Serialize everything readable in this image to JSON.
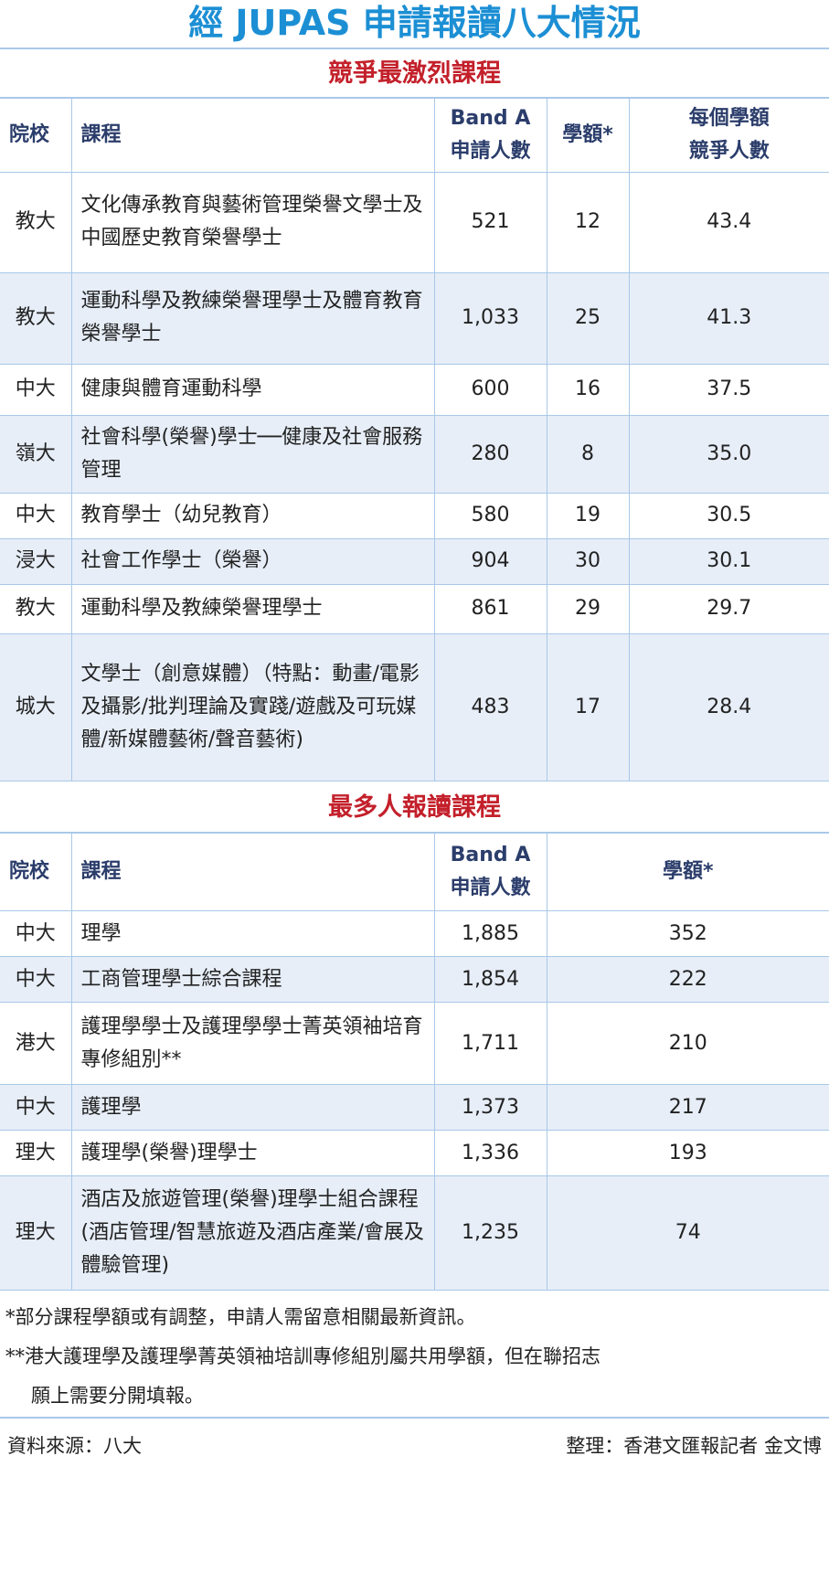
{
  "title": "經 JUPAS 申請報讀八大情況",
  "section1": {
    "title": "競爭最激烈課程",
    "headers": {
      "school": "院校",
      "course": "課程",
      "band_a_1": "Band A",
      "band_a_2": "申請人數",
      "places": "學額*",
      "ratio_1": "每個學額",
      "ratio_2": "競爭人數"
    },
    "rows": [
      {
        "school": "教大",
        "course": "文化傳承教育與藝術管理榮譽文學士及中國歷史教育榮譽學士",
        "band_a": "521",
        "places": "12",
        "ratio": "43.4"
      },
      {
        "school": "教大",
        "course": "運動科學及教練榮譽理學士及體育教育榮譽學士",
        "band_a": "1,033",
        "places": "25",
        "ratio": "41.3"
      },
      {
        "school": "中大",
        "course": "健康與體育運動科學",
        "band_a": "600",
        "places": "16",
        "ratio": "37.5"
      },
      {
        "school": "嶺大",
        "course": "社會科學(榮譽)學士──健康及社會服務管理",
        "band_a": "280",
        "places": "8",
        "ratio": "35.0"
      },
      {
        "school": "中大",
        "course": "教育學士（幼兒教育）",
        "band_a": "580",
        "places": "19",
        "ratio": "30.5"
      },
      {
        "school": "浸大",
        "course": "社會工作學士（榮譽）",
        "band_a": "904",
        "places": "30",
        "ratio": "30.1"
      },
      {
        "school": "教大",
        "course": "運動科學及教練榮譽理學士",
        "band_a": "861",
        "places": "29",
        "ratio": "29.7"
      },
      {
        "school": "城大",
        "course": "文學士（創意媒體）（特點：動畫/電影及攝影/批判理論及實踐/遊戲及可玩媒體/新媒體藝術/聲音藝術)",
        "band_a": "483",
        "places": "17",
        "ratio": "28.4"
      }
    ]
  },
  "section2": {
    "title": "最多人報讀課程",
    "headers": {
      "school": "院校",
      "course": "課程",
      "band_a_1": "Band A",
      "band_a_2": "申請人數",
      "places": "學額*"
    },
    "rows": [
      {
        "school": "中大",
        "course": "理學",
        "band_a": "1,885",
        "places": "352"
      },
      {
        "school": "中大",
        "course": "工商管理學士綜合課程",
        "band_a": "1,854",
        "places": "222"
      },
      {
        "school": "港大",
        "course": "護理學學士及護理學學士菁英領袖培育專修組別**",
        "band_a": "1,711",
        "places": "210"
      },
      {
        "school": "中大",
        "course": "護理學",
        "band_a": "1,373",
        "places": "217"
      },
      {
        "school": "理大",
        "course": "護理學(榮譽)理學士",
        "band_a": "1,336",
        "places": "193"
      },
      {
        "school": "理大",
        "course": "酒店及旅遊管理(榮譽)理學士組合課程(酒店管理/智慧旅遊及酒店產業/會展及體驗管理)",
        "band_a": "1,235",
        "places": "74"
      }
    ]
  },
  "notes": {
    "note1": "*部分課程學額或有調整，申請人需留意相關最新資訊。",
    "note2a": "**港大護理學及護理學菁英領袖培訓專修組別屬共用學額，但在聯招志",
    "note2b": "願上需要分開填報。"
  },
  "footer": {
    "source": "資料來源：八大",
    "credit": "整理：香港文匯報記者 金文博"
  }
}
